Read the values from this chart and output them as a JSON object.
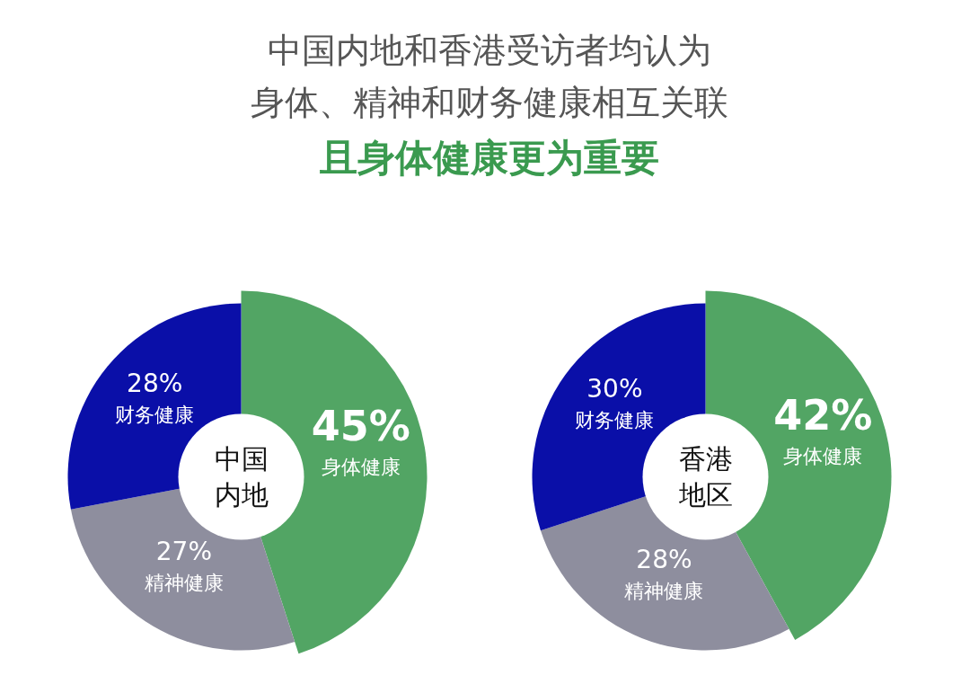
{
  "chart_data": [
    {
      "type": "donut",
      "title": "中国内地和香港受访者均认为",
      "subtitle": "身体、精神和财务健康相互关联",
      "annotations": [
        "且身体健康更为重要",
        "中国",
        "内地"
      ],
      "categories": [
        "身体健康",
        "精神健康",
        "财务健康"
      ],
      "values": [
        45,
        27,
        28
      ],
      "value_labels": [
        "45%",
        "27%",
        "28%"
      ],
      "colors": [
        "#52a564",
        "#8e8e9e",
        "#0a0fa8"
      ]
    },
    {
      "type": "donut",
      "annotations": [
        "香港",
        "地区"
      ],
      "categories": [
        "身体健康",
        "精神健康",
        "财务健康"
      ],
      "values": [
        42,
        28,
        30
      ],
      "value_labels": [
        "42%",
        "28%",
        "30%"
      ],
      "colors": [
        "#52a564",
        "#8e8e9e",
        "#0a0fa8"
      ]
    }
  ]
}
